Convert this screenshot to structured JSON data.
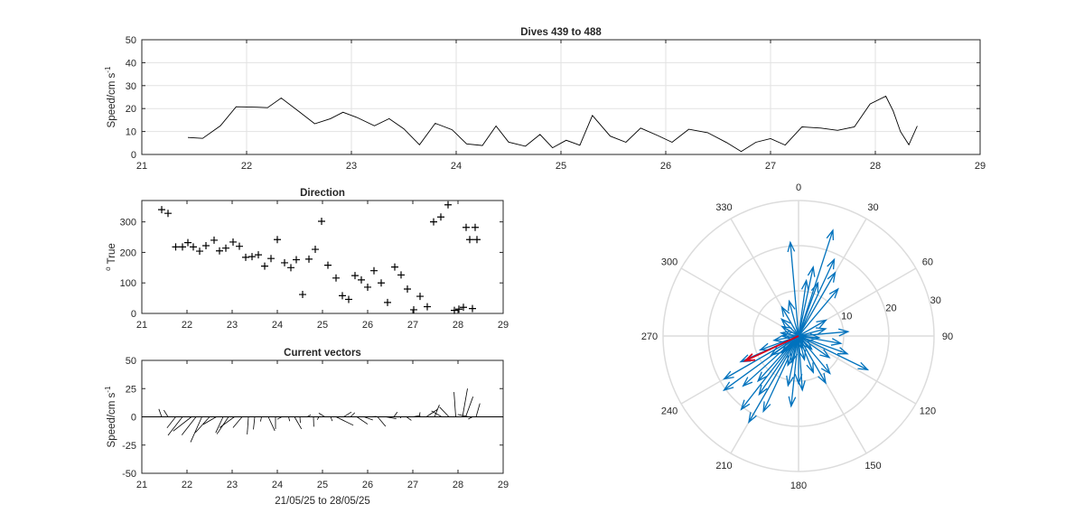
{
  "chart_data": [
    {
      "id": "speed",
      "type": "line",
      "title": "Dives 439 to 488",
      "xlabel": "",
      "ylabel": "Speed/cm s",
      "ylabel_sup": "-1",
      "xlim": [
        21,
        29
      ],
      "ylim": [
        0,
        50
      ],
      "xticks": [
        21,
        22,
        23,
        24,
        25,
        26,
        27,
        28,
        29
      ],
      "yticks": [
        0,
        10,
        20,
        30,
        40,
        50
      ],
      "grid": true,
      "color": "#000000",
      "x": [
        21.44,
        21.58,
        21.75,
        21.9,
        22.1,
        22.2,
        22.33,
        22.5,
        22.65,
        22.8,
        22.92,
        23.05,
        23.22,
        23.36,
        23.5,
        23.65,
        23.8,
        23.96,
        24.1,
        24.25,
        24.38,
        24.5,
        24.66,
        24.8,
        24.92,
        25.05,
        25.18,
        25.3,
        25.47,
        25.62,
        25.76,
        25.92,
        26.06,
        26.22,
        26.4,
        26.58,
        26.72,
        26.86,
        27.0,
        27.14,
        27.3,
        27.48,
        27.64,
        27.8,
        27.95,
        28.1,
        28.17,
        28.24,
        28.32,
        28.4
      ],
      "y": [
        7.4,
        7.0,
        12.5,
        20.8,
        20.6,
        20.4,
        24.6,
        18.7,
        13.4,
        15.6,
        18.4,
        16.2,
        12.5,
        15.6,
        11.2,
        4.2,
        13.6,
        10.8,
        4.6,
        3.9,
        12.4,
        5.4,
        3.6,
        8.7,
        2.9,
        6.2,
        4.0,
        17.0,
        8.0,
        5.3,
        11.5,
        8.3,
        5.3,
        11.0,
        9.5,
        5.2,
        1.3,
        5.3,
        6.9,
        4.1,
        12.0,
        11.5,
        10.5,
        12.0,
        22.0,
        25.4,
        19.0,
        10.0,
        4.2,
        12.4
      ]
    },
    {
      "id": "direction",
      "type": "scatter",
      "title": "Direction",
      "xlabel": "",
      "ylabel": "True",
      "ylabel_pre": "o",
      "xlim": [
        21,
        29
      ],
      "ylim": [
        0,
        370
      ],
      "xticks": [
        21,
        22,
        23,
        24,
        25,
        26,
        27,
        28,
        29
      ],
      "yticks": [
        0,
        100,
        200,
        300
      ],
      "grid": false,
      "marker": "+",
      "x": [
        21.44,
        21.58,
        21.75,
        21.9,
        22.02,
        22.14,
        22.28,
        22.42,
        22.6,
        22.72,
        22.86,
        23.02,
        23.16,
        23.3,
        23.44,
        23.58,
        23.72,
        23.86,
        24.0,
        24.16,
        24.3,
        24.42,
        24.56,
        24.7,
        24.84,
        24.98,
        25.12,
        25.3,
        25.44,
        25.58,
        25.72,
        25.86,
        26.0,
        26.14,
        26.3,
        26.44,
        26.6,
        26.74,
        26.88,
        27.02,
        27.16,
        27.32,
        27.46,
        27.62,
        27.78,
        27.92,
        28.02,
        28.12,
        28.18,
        28.26,
        28.32,
        28.38,
        28.42
      ],
      "y": [
        340,
        328,
        218,
        218,
        232,
        218,
        204,
        222,
        240,
        205,
        214,
        234,
        220,
        184,
        186,
        192,
        155,
        180,
        242,
        166,
        150,
        176,
        62,
        178,
        210,
        302,
        158,
        116,
        58,
        46,
        124,
        110,
        86,
        140,
        100,
        36,
        152,
        126,
        80,
        12,
        56,
        22,
        300,
        316,
        356,
        10,
        14,
        20,
        282,
        242,
        16,
        282,
        242
      ]
    },
    {
      "id": "vectors",
      "type": "line",
      "title": "Current vectors",
      "xlabel": "21/05/25 to 28/05/25",
      "ylabel": "Speed/cm s",
      "ylabel_sup": "-1",
      "xlim": [
        21,
        29
      ],
      "ylim": [
        -50,
        50
      ],
      "xticks": [
        21,
        22,
        23,
        24,
        25,
        26,
        27,
        28,
        29
      ],
      "yticks": [
        -50,
        -25,
        0,
        25,
        50
      ],
      "grid": false,
      "color": "#000000",
      "t": [
        21.44,
        21.58,
        21.75,
        21.9,
        22.1,
        22.2,
        22.33,
        22.5,
        22.65,
        22.8,
        22.92,
        23.05,
        23.22,
        23.36,
        23.5,
        23.65,
        23.8,
        23.96,
        24.1,
        24.25,
        24.38,
        24.5,
        24.66,
        24.8,
        24.92,
        25.05,
        25.18,
        25.3,
        25.47,
        25.62,
        25.76,
        25.92,
        26.06,
        26.22,
        26.4,
        26.58,
        26.72,
        26.86,
        27.0,
        27.14,
        27.3,
        27.48,
        27.64,
        27.8,
        27.95,
        28.1,
        28.17,
        28.24,
        28.32,
        28.4
      ],
      "speed": [
        7.4,
        7.0,
        12.5,
        20.8,
        20.6,
        20.4,
        24.6,
        18.7,
        13.4,
        15.6,
        18.4,
        16.2,
        12.5,
        15.6,
        11.2,
        4.2,
        13.6,
        10.8,
        4.6,
        3.9,
        12.4,
        5.4,
        3.6,
        8.7,
        2.9,
        6.2,
        4.0,
        17.0,
        8.0,
        5.3,
        11.5,
        8.3,
        5.3,
        11.0,
        9.5,
        5.2,
        1.3,
        5.3,
        6.9,
        4.1,
        12.0,
        11.5,
        10.5,
        12.0,
        22.0,
        25.4,
        19.0,
        10.0,
        4.2,
        12.4
      ],
      "direction": [
        340,
        328,
        218,
        218,
        232,
        218,
        204,
        222,
        240,
        205,
        214,
        234,
        220,
        184,
        186,
        192,
        155,
        180,
        242,
        166,
        150,
        176,
        62,
        178,
        210,
        302,
        158,
        116,
        58,
        46,
        124,
        110,
        86,
        140,
        100,
        36,
        152,
        126,
        80,
        12,
        56,
        22,
        300,
        316,
        356,
        10,
        20,
        282,
        242,
        16
      ]
    },
    {
      "id": "compass",
      "type": "polar",
      "theta_zero": "top",
      "theta_direction": "clockwise",
      "theta_ticks": [
        0,
        30,
        60,
        90,
        120,
        150,
        180,
        210,
        240,
        270,
        300,
        330
      ],
      "r_ticks": [
        10,
        20,
        30
      ],
      "rlim": [
        0,
        30
      ],
      "grid": true,
      "arrow_color": "#0072bd",
      "highlight_color": "#d9001b",
      "arrows": [
        {
          "dir": 355,
          "speed": 20.8
        },
        {
          "dir": 18,
          "speed": 24.6
        },
        {
          "dir": 25,
          "speed": 18.7
        },
        {
          "dir": 12,
          "speed": 15.6
        },
        {
          "dir": 30,
          "speed": 16.2
        },
        {
          "dir": 8,
          "speed": 12.4
        },
        {
          "dir": 40,
          "speed": 13.6
        },
        {
          "dir": 20,
          "speed": 12.5
        },
        {
          "dir": 345,
          "speed": 8.0
        },
        {
          "dir": 330,
          "speed": 7.4
        },
        {
          "dir": 315,
          "speed": 5.3
        },
        {
          "dir": 300,
          "speed": 4.2
        },
        {
          "dir": 60,
          "speed": 7.0
        },
        {
          "dir": 75,
          "speed": 6.2
        },
        {
          "dir": 85,
          "speed": 11.0
        },
        {
          "dir": 100,
          "speed": 9.5
        },
        {
          "dir": 110,
          "speed": 11.5
        },
        {
          "dir": 116,
          "speed": 17.0
        },
        {
          "dir": 125,
          "speed": 8.3
        },
        {
          "dir": 140,
          "speed": 10.8
        },
        {
          "dir": 150,
          "speed": 12.0
        },
        {
          "dir": 158,
          "speed": 8.7
        },
        {
          "dir": 166,
          "speed": 5.4
        },
        {
          "dir": 176,
          "speed": 12.0
        },
        {
          "dir": 180,
          "speed": 10.5
        },
        {
          "dir": 186,
          "speed": 15.6
        },
        {
          "dir": 192,
          "speed": 11.2
        },
        {
          "dir": 200,
          "speed": 6.9
        },
        {
          "dir": 205,
          "speed": 18.4
        },
        {
          "dir": 210,
          "speed": 22.0
        },
        {
          "dir": 214,
          "speed": 15.6
        },
        {
          "dir": 218,
          "speed": 20.6
        },
        {
          "dir": 222,
          "speed": 13.4
        },
        {
          "dir": 228,
          "speed": 16.5
        },
        {
          "dir": 234,
          "speed": 20.4
        },
        {
          "dir": 240,
          "speed": 19.0
        },
        {
          "dir": 246,
          "speed": 14.0
        },
        {
          "dir": 250,
          "speed": 9.0
        },
        {
          "dir": 260,
          "speed": 5.5
        },
        {
          "dir": 270,
          "speed": 3.6
        },
        {
          "dir": 280,
          "speed": 3.9
        },
        {
          "dir": 95,
          "speed": 4.6
        },
        {
          "dir": 135,
          "speed": 4.1
        },
        {
          "dir": 165,
          "speed": 2.9
        },
        {
          "dir": 190,
          "speed": 1.3
        },
        {
          "dir": 235,
          "speed": 7.4
        },
        {
          "dir": 225,
          "speed": 5.2
        },
        {
          "dir": 195,
          "speed": 6.0
        }
      ],
      "highlight": {
        "dir": 245,
        "speed": 13.0
      }
    }
  ]
}
